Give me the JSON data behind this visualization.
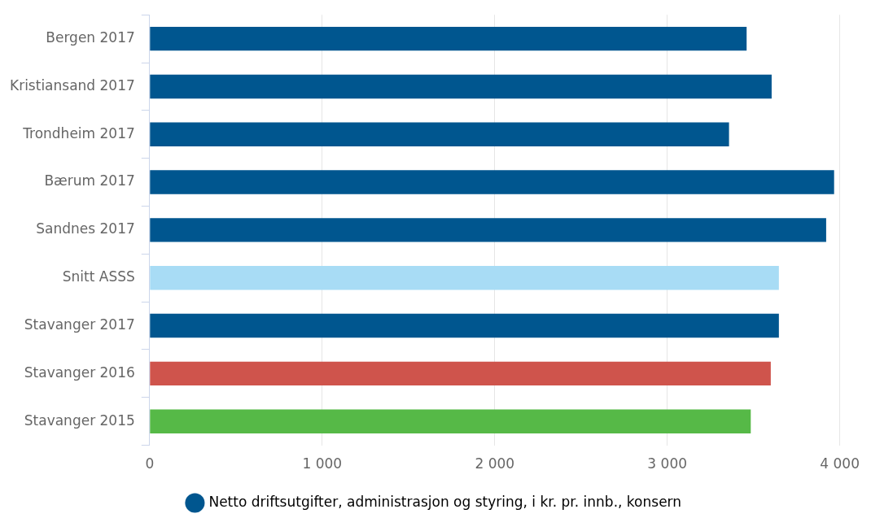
{
  "chart_data": {
    "type": "bar",
    "orientation": "horizontal",
    "categories": [
      "Bergen 2017",
      "Kristiansand 2017",
      "Trondheim 2017",
      "Bærum 2017",
      "Sandnes 2017",
      "Snitt ASSS",
      "Stavanger 2017",
      "Stavanger 2016",
      "Stavanger 2015"
    ],
    "series": [
      {
        "name": "Netto driftsutgifter, administrasjon og styring, i kr. pr. innb., konsern",
        "color": "#00568f",
        "colors": [
          "#00568f",
          "#00568f",
          "#00568f",
          "#00568f",
          "#00568f",
          "#a8dcf5",
          "#00568f",
          "#cf544c",
          "#56b947"
        ],
        "values": [
          3460,
          3605,
          3358,
          3967,
          3921,
          3647,
          3647,
          3600,
          3484
        ]
      }
    ],
    "xlim": [
      0,
      4000
    ],
    "xticks": [
      {
        "value": 0,
        "label": "0"
      },
      {
        "value": 1000,
        "label": "1 000"
      },
      {
        "value": 2000,
        "label": "2 000"
      },
      {
        "value": 3000,
        "label": "3 000"
      },
      {
        "value": 4000,
        "label": "4 000"
      }
    ],
    "grid": "x",
    "legend": "bottom",
    "marker": "circle"
  }
}
